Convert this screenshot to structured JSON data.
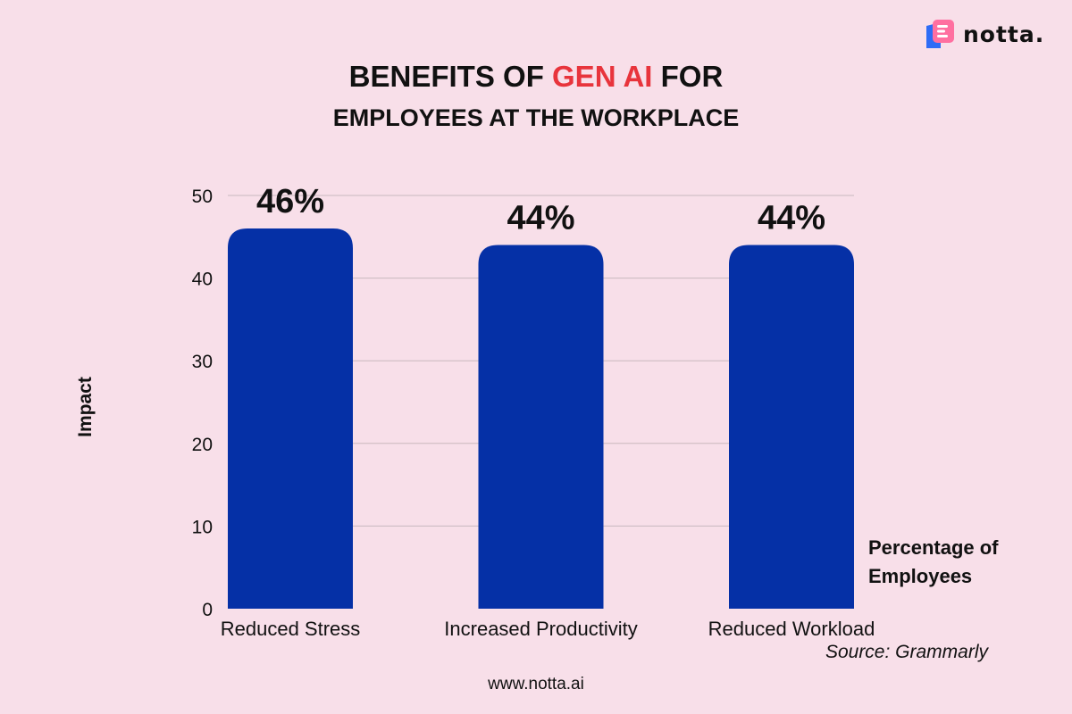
{
  "branding": {
    "logo_text": "notta.",
    "website": "www.notta.ai",
    "logo_icon": "notta-logo-icon"
  },
  "title": {
    "part1": "BENEFITS OF ",
    "accent": "GEN AI",
    "part2": " FOR",
    "line2": "EMPLOYEES AT THE WORKPLACE"
  },
  "colors": {
    "background": "#f8dfe9",
    "bar": "#0530a6",
    "accent": "#e8343c",
    "grid": "#c9b8be"
  },
  "chart_data": {
    "type": "bar",
    "categories": [
      "Reduced Stress",
      "Increased Productivity",
      "Reduced Workload"
    ],
    "series": [
      {
        "name": "Percentage of Employees",
        "values": [
          46,
          44,
          44
        ]
      }
    ],
    "data_labels": [
      "46%",
      "44%",
      "44%"
    ],
    "ylabel": "Impact",
    "xlabel": "",
    "ylim": [
      0,
      50
    ],
    "yticks": [
      0,
      10,
      20,
      30,
      40,
      50
    ],
    "grid": true,
    "legend_placement": "bottom-right"
  },
  "source": "Source: Grammarly"
}
